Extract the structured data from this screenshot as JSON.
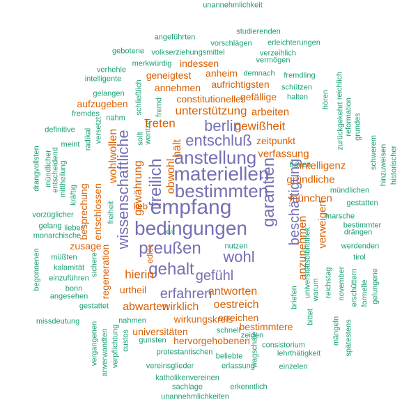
{
  "colors": {
    "purple": "#7570b3",
    "orange": "#d95f02",
    "green": "#1b9e77"
  },
  "words": [
    {
      "text": "empfang",
      "color": "purple",
      "vertical": false
    },
    {
      "text": "bedingungen",
      "color": "purple",
      "vertical": false
    },
    {
      "text": "materiellen",
      "color": "purple",
      "vertical": false
    },
    {
      "text": "bestimmten",
      "color": "purple",
      "vertical": false
    },
    {
      "text": "anstellung",
      "color": "purple",
      "vertical": false
    },
    {
      "text": "preußen",
      "color": "purple",
      "vertical": false
    },
    {
      "text": "gehalt",
      "color": "purple",
      "vertical": false
    },
    {
      "text": "entschluß",
      "color": "purple",
      "vertical": false
    },
    {
      "text": "freilich",
      "color": "purple",
      "vertical": true
    },
    {
      "text": "wissenschaftliche",
      "color": "purple",
      "vertical": true
    },
    {
      "text": "garantien",
      "color": "purple",
      "vertical": true
    },
    {
      "text": "berlin",
      "color": "purple",
      "vertical": false
    },
    {
      "text": "wohl",
      "color": "purple",
      "vertical": false
    },
    {
      "text": "gefühl",
      "color": "purple",
      "vertical": false
    },
    {
      "text": "erfahren",
      "color": "purple",
      "vertical": false
    },
    {
      "text": "beschäftigung",
      "color": "purple",
      "vertical": true
    },
    {
      "text": "gewißheit",
      "color": "orange",
      "vertical": false
    },
    {
      "text": "unterstützung",
      "color": "orange",
      "vertical": false
    },
    {
      "text": "treten",
      "color": "orange",
      "vertical": false
    },
    {
      "text": "hält",
      "color": "orange",
      "vertical": true
    },
    {
      "text": "obwohl",
      "color": "orange",
      "vertical": true
    },
    {
      "text": "wohlwollen",
      "color": "orange",
      "vertical": true
    },
    {
      "text": "gewährung",
      "color": "orange",
      "vertical": true
    },
    {
      "text": "hierin",
      "color": "orange",
      "vertical": false
    },
    {
      "text": "abwarten",
      "color": "orange",
      "vertical": false
    },
    {
      "text": "wirklich",
      "color": "orange",
      "vertical": false
    },
    {
      "text": "antworten",
      "color": "orange",
      "vertical": false
    },
    {
      "text": "oestreich",
      "color": "orange",
      "vertical": false
    },
    {
      "text": "anzunehmen",
      "color": "orange",
      "vertical": true
    },
    {
      "text": "verfassung",
      "color": "orange",
      "vertical": false
    },
    {
      "text": "intelligenz",
      "color": "orange",
      "vertical": false
    },
    {
      "text": "gründliche",
      "color": "orange",
      "vertical": false
    },
    {
      "text": "münchen",
      "color": "orange",
      "vertical": false
    },
    {
      "text": "verweigert",
      "color": "orange",
      "vertical": true
    },
    {
      "text": "arbeiten",
      "color": "orange",
      "vertical": false
    },
    {
      "text": "zeitpunkt",
      "color": "orange",
      "vertical": false
    },
    {
      "text": "gefällige",
      "color": "orange",
      "vertical": false
    },
    {
      "text": "constitutioneller",
      "color": "orange",
      "vertical": false
    },
    {
      "text": "annehmen",
      "color": "orange",
      "vertical": false
    },
    {
      "text": "aufrichtigsten",
      "color": "orange",
      "vertical": false
    },
    {
      "text": "anheim",
      "color": "orange",
      "vertical": false
    },
    {
      "text": "geneigtest",
      "color": "orange",
      "vertical": false
    },
    {
      "text": "indessen",
      "color": "orange",
      "vertical": false
    },
    {
      "text": "aufzugeben",
      "color": "orange",
      "vertical": false
    },
    {
      "text": "besprechung",
      "color": "orange",
      "vertical": true
    },
    {
      "text": "entschlossen",
      "color": "orange",
      "vertical": true
    },
    {
      "text": "zusage",
      "color": "orange",
      "vertical": false
    },
    {
      "text": "regeneration",
      "color": "orange",
      "vertical": true
    },
    {
      "text": "lieb",
      "color": "orange",
      "vertical": false
    },
    {
      "text": "edler",
      "color": "orange",
      "vertical": true
    },
    {
      "text": "urtheil",
      "color": "orange",
      "vertical": false
    },
    {
      "text": "wirkungskreis",
      "color": "orange",
      "vertical": false
    },
    {
      "text": "erreichen",
      "color": "orange",
      "vertical": false
    },
    {
      "text": "bestimmtere",
      "color": "orange",
      "vertical": false
    },
    {
      "text": "universitäten",
      "color": "orange",
      "vertical": false
    },
    {
      "text": "hervorgehobenen",
      "color": "orange",
      "vertical": false
    },
    {
      "text": "unannehmlichkeit",
      "color": "green",
      "vertical": false
    },
    {
      "text": "studierenden",
      "color": "green",
      "vertical": false
    },
    {
      "text": "angeführten",
      "color": "green",
      "vertical": false
    },
    {
      "text": "vorschlägen",
      "color": "green",
      "vertical": false
    },
    {
      "text": "erleichterungen",
      "color": "green",
      "vertical": false
    },
    {
      "text": "gebotene",
      "color": "green",
      "vertical": false
    },
    {
      "text": "volkserziehungsmittel",
      "color": "green",
      "vertical": false
    },
    {
      "text": "verzeihlich",
      "color": "green",
      "vertical": false
    },
    {
      "text": "merkwürdig",
      "color": "green",
      "vertical": false
    },
    {
      "text": "vermögen",
      "color": "green",
      "vertical": false
    },
    {
      "text": "verhehle",
      "color": "green",
      "vertical": false
    },
    {
      "text": "demnach",
      "color": "green",
      "vertical": false
    },
    {
      "text": "fremdling",
      "color": "green",
      "vertical": false
    },
    {
      "text": "intelligente",
      "color": "green",
      "vertical": false
    },
    {
      "text": "schützen",
      "color": "green",
      "vertical": false
    },
    {
      "text": "gelangen",
      "color": "green",
      "vertical": false
    },
    {
      "text": "halten",
      "color": "green",
      "vertical": false
    },
    {
      "text": "hören",
      "color": "green",
      "vertical": true
    },
    {
      "text": "reichlich",
      "color": "green",
      "vertical": true
    },
    {
      "text": "fremdes",
      "color": "green",
      "vertical": false
    },
    {
      "text": "nahm",
      "color": "green",
      "vertical": false
    },
    {
      "text": "schließlich",
      "color": "green",
      "vertical": true
    },
    {
      "text": "definitive",
      "color": "green",
      "vertical": false
    },
    {
      "text": "radikal",
      "color": "green",
      "vertical": true
    },
    {
      "text": "versetzt",
      "color": "green",
      "vertical": true
    },
    {
      "text": "wentzel",
      "color": "green",
      "vertical": true
    },
    {
      "text": "fremd",
      "color": "green",
      "vertical": true
    },
    {
      "text": "meint",
      "color": "green",
      "vertical": false
    },
    {
      "text": "sollt",
      "color": "green",
      "vertical": true
    },
    {
      "text": "zurückgekehrt",
      "color": "green",
      "vertical": true
    },
    {
      "text": "reformation",
      "color": "green",
      "vertical": true
    },
    {
      "text": "grundes",
      "color": "green",
      "vertical": true
    },
    {
      "text": "drangvollsten",
      "color": "green",
      "vertical": true
    },
    {
      "text": "mündlicher",
      "color": "green",
      "vertical": true
    },
    {
      "text": "entscheidend",
      "color": "green",
      "vertical": true
    },
    {
      "text": "mittheilung",
      "color": "green",
      "vertical": true
    },
    {
      "text": "bauen",
      "color": "green",
      "vertical": false
    },
    {
      "text": "schwerem",
      "color": "green",
      "vertical": true
    },
    {
      "text": "hinzuweisen",
      "color": "green",
      "vertical": true
    },
    {
      "text": "historischer",
      "color": "green",
      "vertical": true
    },
    {
      "text": "mündlichen",
      "color": "green",
      "vertical": false
    },
    {
      "text": "gestatten",
      "color": "green",
      "vertical": false
    },
    {
      "text": "kräftig",
      "color": "green",
      "vertical": true
    },
    {
      "text": "vorzüglicher",
      "color": "green",
      "vertical": false
    },
    {
      "text": "gelang",
      "color": "green",
      "vertical": false
    },
    {
      "text": "lieben",
      "color": "green",
      "vertical": false
    },
    {
      "text": "monarchische",
      "color": "green",
      "vertical": false
    },
    {
      "text": "marsche",
      "color": "green",
      "vertical": false
    },
    {
      "text": "bestimmter",
      "color": "green",
      "vertical": false
    },
    {
      "text": "drängen",
      "color": "green",
      "vertical": false
    },
    {
      "text": "freiheit",
      "color": "green",
      "vertical": true
    },
    {
      "text": "universitätsbibliothek",
      "color": "green",
      "vertical": true
    },
    {
      "text": "nutzen",
      "color": "green",
      "vertical": false
    },
    {
      "text": "werdenden",
      "color": "green",
      "vertical": false
    },
    {
      "text": "begonnenen",
      "color": "green",
      "vertical": true
    },
    {
      "text": "müßten",
      "color": "green",
      "vertical": false
    },
    {
      "text": "kalamität",
      "color": "green",
      "vertical": false
    },
    {
      "text": "sichere",
      "color": "green",
      "vertical": true
    },
    {
      "text": "tirol",
      "color": "green",
      "vertical": false
    },
    {
      "text": "einzuführen",
      "color": "green",
      "vertical": false
    },
    {
      "text": "bonn",
      "color": "green",
      "vertical": false
    },
    {
      "text": "angesehen",
      "color": "green",
      "vertical": false
    },
    {
      "text": "november",
      "color": "green",
      "vertical": true
    },
    {
      "text": "erschüttern",
      "color": "green",
      "vertical": true
    },
    {
      "text": "formelle",
      "color": "green",
      "vertical": true
    },
    {
      "text": "gelungene",
      "color": "green",
      "vertical": true
    },
    {
      "text": "reichstag",
      "color": "green",
      "vertical": true
    },
    {
      "text": "warum",
      "color": "green",
      "vertical": true
    },
    {
      "text": "briefen",
      "color": "green",
      "vertical": true
    },
    {
      "text": "gestattet",
      "color": "green",
      "vertical": false
    },
    {
      "text": "missdeutung",
      "color": "green",
      "vertical": false
    },
    {
      "text": "nahmen",
      "color": "green",
      "vertical": false
    },
    {
      "text": "schnell",
      "color": "green",
      "vertical": false
    },
    {
      "text": "vergangenen",
      "color": "green",
      "vertical": true
    },
    {
      "text": "anverwandten",
      "color": "green",
      "vertical": true
    },
    {
      "text": "verpflichtung",
      "color": "green",
      "vertical": true
    },
    {
      "text": "custos",
      "color": "green",
      "vertical": true
    },
    {
      "text": "gunsten",
      "color": "green",
      "vertical": false
    },
    {
      "text": "zeigen",
      "color": "green",
      "vertical": false
    },
    {
      "text": "bittet",
      "color": "green",
      "vertical": true
    },
    {
      "text": "mängeln",
      "color": "green",
      "vertical": true
    },
    {
      "text": "spätestens",
      "color": "green",
      "vertical": true
    },
    {
      "text": "protestantischen",
      "color": "green",
      "vertical": false
    },
    {
      "text": "beliebte",
      "color": "green",
      "vertical": false
    },
    {
      "text": "consistorium",
      "color": "green",
      "vertical": false
    },
    {
      "text": "lehrthätigkeit",
      "color": "green",
      "vertical": false
    },
    {
      "text": "wagschale",
      "color": "green",
      "vertical": true
    },
    {
      "text": "vereinsglieder",
      "color": "green",
      "vertical": false
    },
    {
      "text": "erlassung",
      "color": "green",
      "vertical": false
    },
    {
      "text": "einzelen",
      "color": "green",
      "vertical": false
    },
    {
      "text": "katholikenvereinen",
      "color": "green",
      "vertical": false
    },
    {
      "text": "sachlage",
      "color": "green",
      "vertical": false
    },
    {
      "text": "erkenntlich",
      "color": "green",
      "vertical": false
    },
    {
      "text": "unannehmlichkeiten",
      "color": "green",
      "vertical": false
    },
    {
      "text": "xvi",
      "color": "green",
      "vertical": false
    }
  ]
}
